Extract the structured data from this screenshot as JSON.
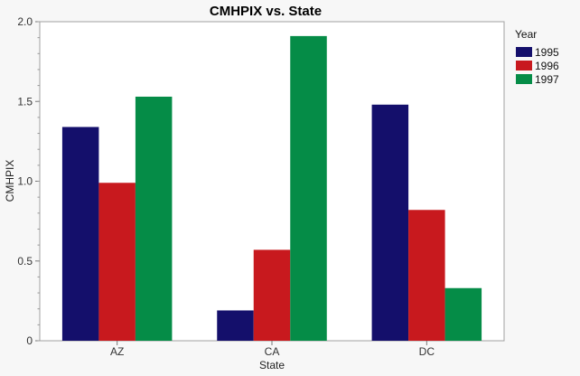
{
  "chart_data": {
    "type": "bar",
    "title": "CMHPIX vs. State",
    "xlabel": "State",
    "ylabel": "CMHPIX",
    "categories": [
      "AZ",
      "CA",
      "DC"
    ],
    "ylim": [
      0,
      2.0
    ],
    "yticks": [
      0,
      0.5,
      1.0,
      1.5,
      2.0
    ],
    "ytick_labels": [
      "0",
      "0.5",
      "1.0",
      "1.5",
      "2.0"
    ],
    "grid": false,
    "legend": {
      "title": "Year",
      "placement": "right"
    },
    "series": [
      {
        "name": "1995",
        "color": "#140f6b",
        "values": [
          1.34,
          0.19,
          1.48
        ]
      },
      {
        "name": "1996",
        "color": "#c8191e",
        "values": [
          0.99,
          0.57,
          0.82
        ]
      },
      {
        "name": "1997",
        "color": "#058c47",
        "values": [
          1.53,
          1.91,
          0.33
        ]
      }
    ]
  }
}
